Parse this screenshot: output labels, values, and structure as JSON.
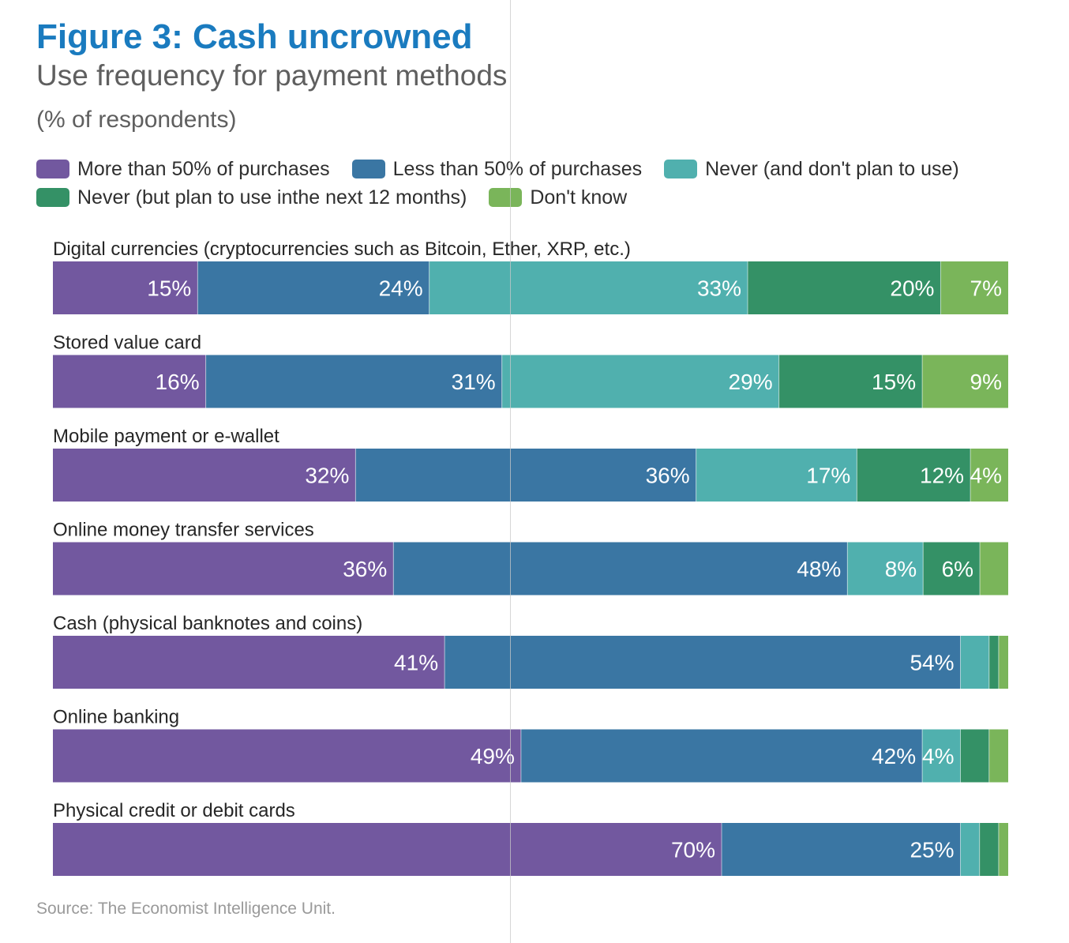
{
  "header": {
    "title": "Figure 3: Cash uncrowned",
    "subtitle": "Use frequency for payment methods",
    "units": "(% of respondents)"
  },
  "legend": [
    {
      "label": "More than 50% of purchases",
      "color": "#72589f"
    },
    {
      "label": "Less than 50% of purchases",
      "color": "#3a76a3"
    },
    {
      "label": "Never (and don't plan to use)",
      "color": "#50b0ae"
    },
    {
      "label": "Never (but plan to use inthe next 12 months)",
      "color": "#349166"
    },
    {
      "label": "Don't know",
      "color": "#7ab55a"
    }
  ],
  "chart_data": {
    "type": "bar",
    "orientation": "horizontal",
    "stacked": true,
    "categories": [
      "Digital currencies (cryptocurrencies such as Bitcoin, Ether, XRP, etc.)",
      "Stored value card",
      "Mobile payment or e-wallet",
      "Online money transfer services",
      "Cash (physical banknotes and coins)",
      "Online banking",
      "Physical credit or debit cards"
    ],
    "series": [
      {
        "name": "More than 50% of purchases",
        "color": "#72589f",
        "values": [
          15,
          16,
          32,
          36,
          41,
          49,
          70
        ]
      },
      {
        "name": "Less than 50% of purchases",
        "color": "#3a76a3",
        "values": [
          24,
          31,
          36,
          48,
          54,
          42,
          25
        ]
      },
      {
        "name": "Never (and don't plan to use)",
        "color": "#50b0ae",
        "values": [
          33,
          29,
          17,
          8,
          3,
          4,
          2
        ]
      },
      {
        "name": "Never (but plan to use inthe next 12 months)",
        "color": "#349166",
        "values": [
          20,
          15,
          12,
          6,
          1,
          3,
          2
        ]
      },
      {
        "name": "Don't know",
        "color": "#7ab55a",
        "values": [
          7,
          9,
          4,
          3,
          1,
          2,
          1
        ]
      }
    ],
    "value_labels": [
      [
        "15%",
        "24%",
        "33%",
        "20%",
        "7%"
      ],
      [
        "16%",
        "31%",
        "29%",
        "15%",
        "9%"
      ],
      [
        "32%",
        "36%",
        "17%",
        "12%",
        "4%"
      ],
      [
        "36%",
        "48%",
        "8%",
        "6%",
        ""
      ],
      [
        "41%",
        "54%",
        "",
        "",
        ""
      ],
      [
        "49%",
        "42%",
        "4%",
        "",
        ""
      ],
      [
        "70%",
        "25%",
        "",
        "",
        ""
      ]
    ],
    "xlim": [
      0,
      100
    ]
  },
  "footer": {
    "source": "Source: The Economist Intelligence Unit."
  }
}
